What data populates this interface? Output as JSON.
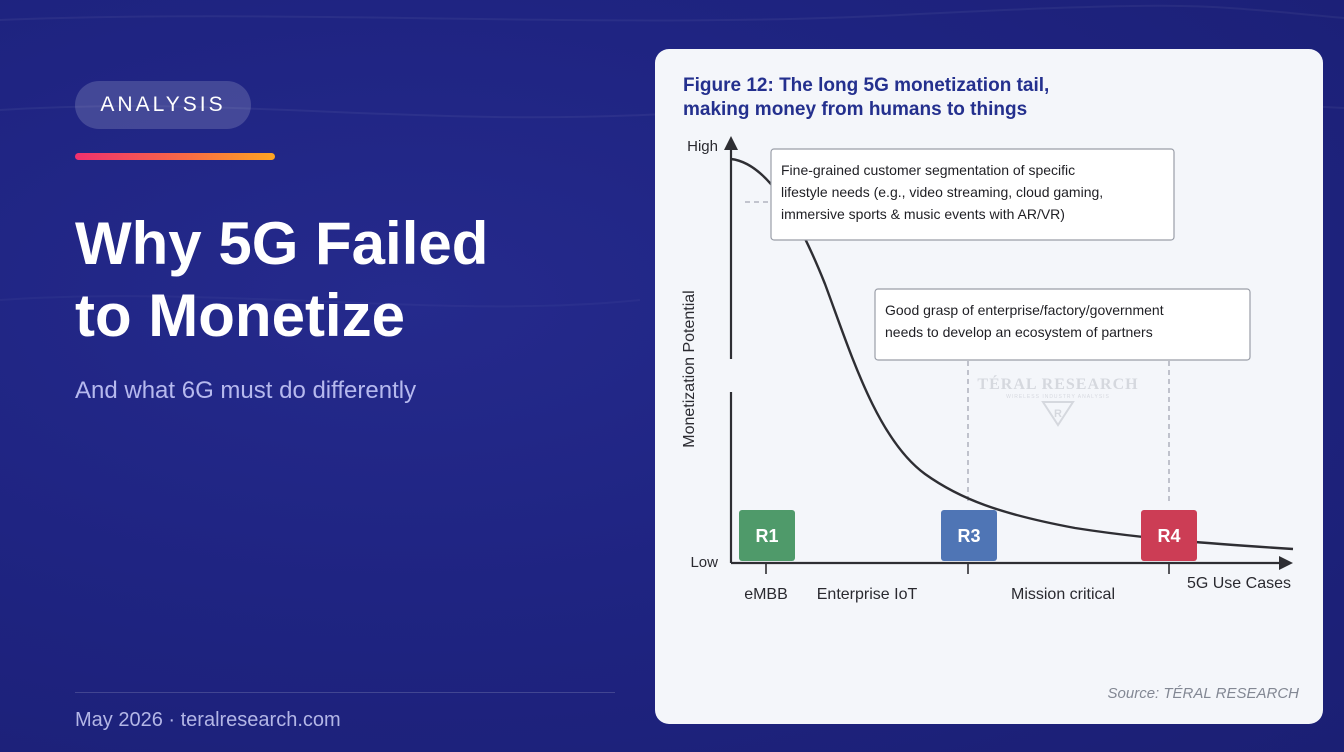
{
  "badge": "ANALYSIS",
  "headline": [
    "Why 5G Failed",
    "to Monetize"
  ],
  "subtitle": "And what 6G must do differently",
  "footer": "May 2026 · teralresearch.com",
  "colors": {
    "background": "#1f2482",
    "accent_start": "#f0306e",
    "accent_end": "#fda522",
    "figure_title": "#24308e",
    "r1": "#4f9a6a",
    "r3": "#4f75b5",
    "r4": "#cc3d55"
  },
  "figure": {
    "title_lines": [
      "Figure 12: The long 5G monetization tail,",
      "making money from humans to things"
    ],
    "y_axis_label": "Monetization Potential",
    "y_high": "High",
    "y_low": "Low",
    "x_axis_label": "5G Use Cases",
    "callout_1": [
      "Fine-grained customer segmentation of specific",
      "lifestyle needs (e.g., video streaming, cloud gaming,",
      "immersive sports & music events with AR/VR)"
    ],
    "callout_2": [
      "Good grasp of enterprise/factory/government",
      "needs to develop an ecosystem of partners"
    ],
    "markers": [
      {
        "label": "R1",
        "color": "#4f9a6a"
      },
      {
        "label": "R3",
        "color": "#4f75b5"
      },
      {
        "label": "R4",
        "color": "#cc3d55"
      }
    ],
    "categories": [
      "eMBB",
      "Enterprise IoT",
      "Mission critical"
    ],
    "watermark": {
      "name": "TÉRAL RESEARCH",
      "tagline": "WIRELESS INDUSTRY ANALYSIS",
      "logo_letter": "R"
    },
    "source": "Source: TÉRAL RESEARCH"
  }
}
